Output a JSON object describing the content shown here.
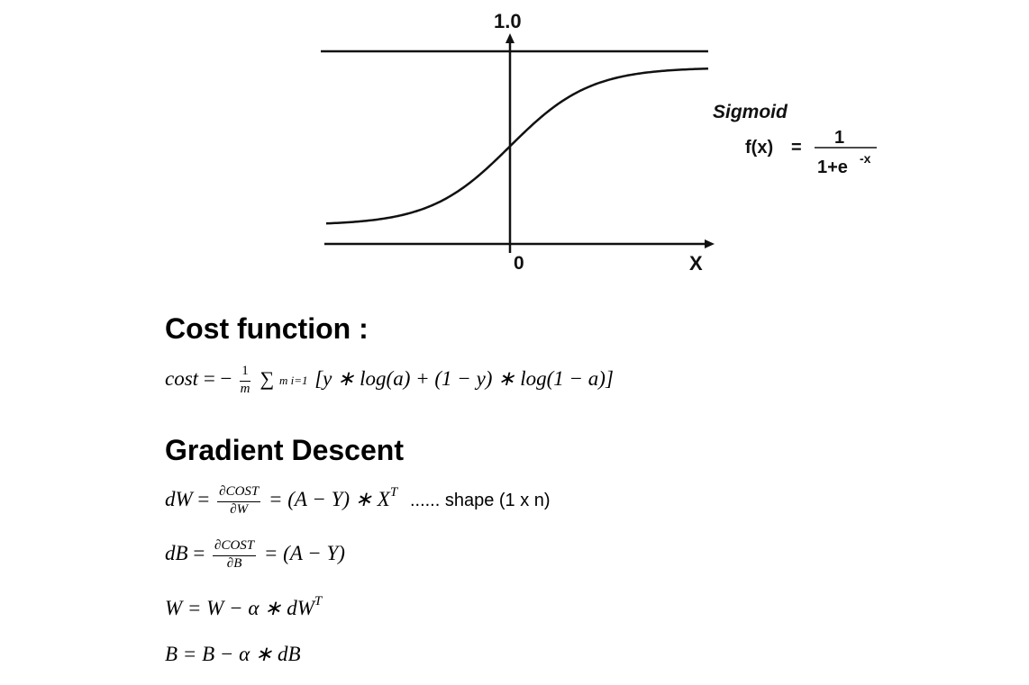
{
  "figure": {
    "axis_top_label": "1.0",
    "origin_label": "0",
    "x_axis_label": "X",
    "curve_name": "Sigmoid",
    "formula_lhs": "f(x)",
    "formula_eq": "=",
    "formula_numerator": "1",
    "formula_denominator_base": "1+e",
    "formula_denominator_exponent": "-x"
  },
  "sections": {
    "cost_heading": "Cost function :",
    "gradient_heading": "Gradient Descent"
  },
  "equations": {
    "cost": {
      "lhs": "cost",
      "eq": "= −",
      "frac_num": "1",
      "frac_den": "m",
      "sum_symbol": "∑",
      "sum_upper": "m",
      "sum_lower": "i=1",
      "body": "[y ∗ log(a) + (1 − y) ∗ log(1 − a)]"
    },
    "dW": {
      "lhs": "dW",
      "eq": "=",
      "frac_num": "∂COST",
      "frac_den": "∂W",
      "rhs": "= (A − Y) ∗ X",
      "rhs_sup": "T",
      "note": "...... shape (1 x n)"
    },
    "dB": {
      "lhs": "dB",
      "eq": "=",
      "frac_num": "∂COST",
      "frac_den": "∂B",
      "rhs": "= (A − Y)"
    },
    "W_update": {
      "text": "W = W − α ∗ dW",
      "sup": "T"
    },
    "B_update": {
      "text": "B = B − α ∗ dB"
    }
  }
}
